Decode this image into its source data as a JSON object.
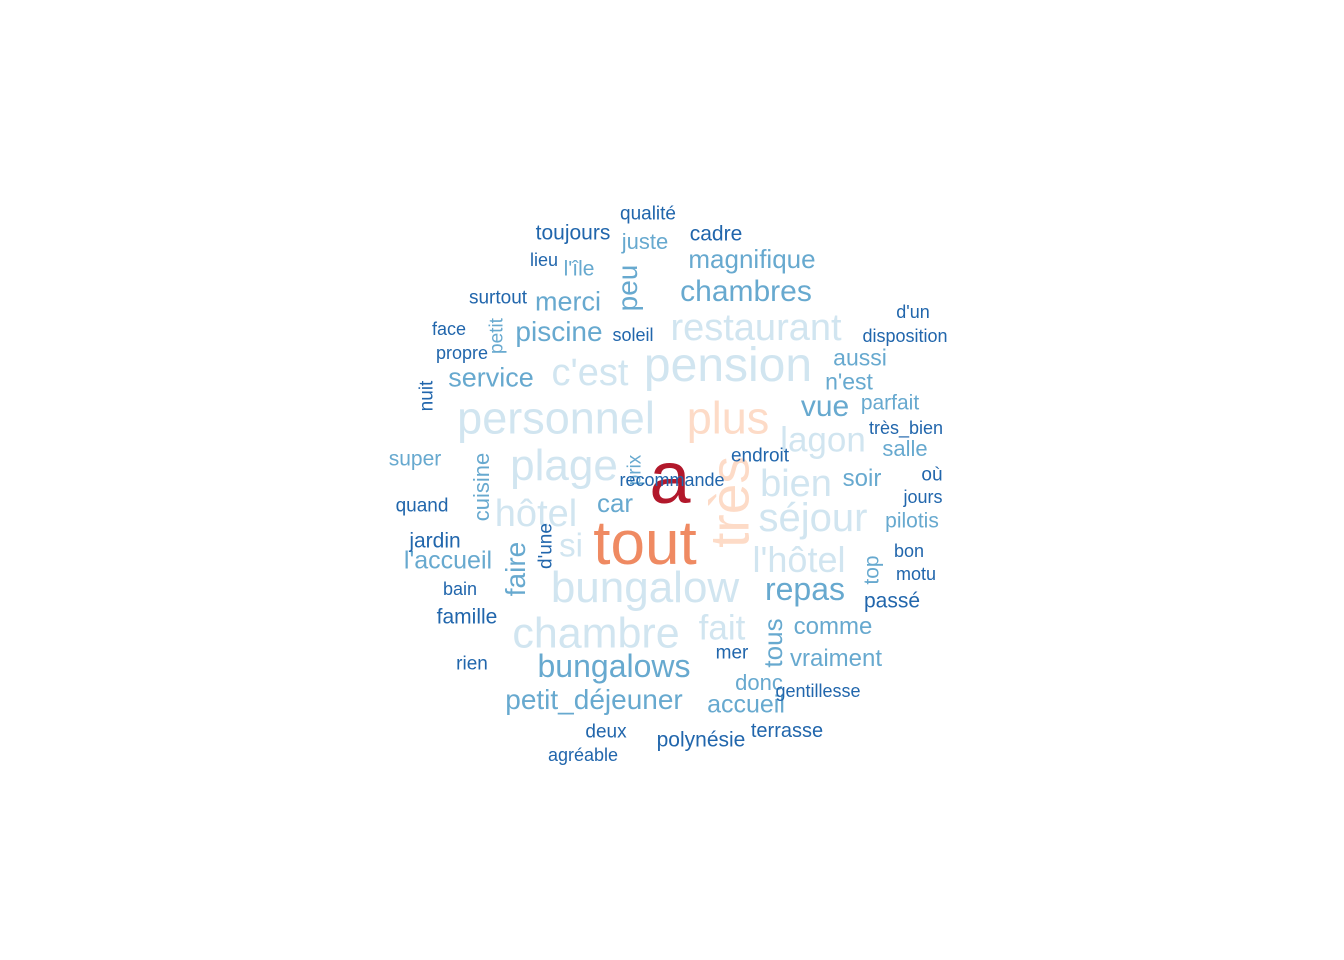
{
  "palette": {
    "darkred": "#b2182b",
    "orange": "#ef8a62",
    "peach": "#fddbc7",
    "pale": "#d1e5f0",
    "light": "#67a9cf",
    "dark": "#2166ac"
  },
  "words": [
    {
      "text": "a",
      "weight": 74,
      "color": "darkred"
    },
    {
      "text": "tout",
      "weight": 62,
      "color": "orange"
    },
    {
      "text": "très",
      "weight": 55,
      "color": "peach"
    },
    {
      "text": "plus",
      "weight": 45,
      "color": "peach"
    },
    {
      "text": "pension",
      "weight": 48,
      "color": "pale"
    },
    {
      "text": "personnel",
      "weight": 45,
      "color": "pale"
    },
    {
      "text": "plage",
      "weight": 44,
      "color": "pale"
    },
    {
      "text": "bungalow",
      "weight": 44,
      "color": "pale"
    },
    {
      "text": "chambre",
      "weight": 43,
      "color": "pale"
    },
    {
      "text": "restaurant",
      "weight": 38,
      "color": "pale"
    },
    {
      "text": "c'est",
      "weight": 38,
      "color": "pale"
    },
    {
      "text": "séjour",
      "weight": 40,
      "color": "pale"
    },
    {
      "text": "hôtel",
      "weight": 38,
      "color": "pale"
    },
    {
      "text": "bien",
      "weight": 38,
      "color": "pale"
    },
    {
      "text": "lagon",
      "weight": 35,
      "color": "pale"
    },
    {
      "text": "l'hôtel",
      "weight": 36,
      "color": "pale"
    },
    {
      "text": "fait",
      "weight": 35,
      "color": "pale"
    },
    {
      "text": "si",
      "weight": 33,
      "color": "pale"
    },
    {
      "text": "bungalows",
      "weight": 32,
      "color": "light"
    },
    {
      "text": "chambres",
      "weight": 30,
      "color": "light"
    },
    {
      "text": "repas",
      "weight": 32,
      "color": "light"
    },
    {
      "text": "petit_déjeuner",
      "weight": 28,
      "color": "light"
    },
    {
      "text": "vue",
      "weight": 30,
      "color": "light"
    },
    {
      "text": "peu",
      "weight": 28,
      "color": "light"
    },
    {
      "text": "magnifique",
      "weight": 26,
      "color": "light"
    },
    {
      "text": "merci",
      "weight": 27,
      "color": "light"
    },
    {
      "text": "piscine",
      "weight": 28,
      "color": "light"
    },
    {
      "text": "service",
      "weight": 27,
      "color": "light"
    },
    {
      "text": "car",
      "weight": 26,
      "color": "light"
    },
    {
      "text": "faire",
      "weight": 28,
      "color": "light"
    },
    {
      "text": "l'accueil",
      "weight": 25,
      "color": "light"
    },
    {
      "text": "accueil",
      "weight": 25,
      "color": "light"
    },
    {
      "text": "tous",
      "weight": 26,
      "color": "light"
    },
    {
      "text": "comme",
      "weight": 24,
      "color": "light"
    },
    {
      "text": "vraiment",
      "weight": 24,
      "color": "light"
    },
    {
      "text": "cuisine",
      "weight": 22,
      "color": "light"
    },
    {
      "text": "aussi",
      "weight": 23,
      "color": "light"
    },
    {
      "text": "n'est",
      "weight": 23,
      "color": "light"
    },
    {
      "text": "soir",
      "weight": 24,
      "color": "light"
    },
    {
      "text": "donc",
      "weight": 22,
      "color": "light"
    },
    {
      "text": "juste",
      "weight": 22,
      "color": "light"
    },
    {
      "text": "super",
      "weight": 21,
      "color": "light"
    },
    {
      "text": "parfait",
      "weight": 21,
      "color": "light"
    },
    {
      "text": "salle",
      "weight": 22,
      "color": "light"
    },
    {
      "text": "pilotis",
      "weight": 21,
      "color": "light"
    },
    {
      "text": "top",
      "weight": 21,
      "color": "light"
    },
    {
      "text": "l'île",
      "weight": 21,
      "color": "light"
    },
    {
      "text": "petit",
      "weight": 19,
      "color": "light"
    },
    {
      "text": "prix",
      "weight": 19,
      "color": "light"
    },
    {
      "text": "toujours",
      "weight": 21,
      "color": "dark"
    },
    {
      "text": "cadre",
      "weight": 21,
      "color": "dark"
    },
    {
      "text": "qualité",
      "weight": 19,
      "color": "dark"
    },
    {
      "text": "lieu",
      "weight": 18,
      "color": "dark"
    },
    {
      "text": "surtout",
      "weight": 19,
      "color": "dark"
    },
    {
      "text": "face",
      "weight": 18,
      "color": "dark"
    },
    {
      "text": "propre",
      "weight": 18,
      "color": "dark"
    },
    {
      "text": "soleil",
      "weight": 18,
      "color": "dark"
    },
    {
      "text": "nuit",
      "weight": 19,
      "color": "dark"
    },
    {
      "text": "d'un",
      "weight": 18,
      "color": "dark"
    },
    {
      "text": "disposition",
      "weight": 18,
      "color": "dark"
    },
    {
      "text": "très_bien",
      "weight": 18,
      "color": "dark"
    },
    {
      "text": "endroit",
      "weight": 19,
      "color": "dark"
    },
    {
      "text": "où",
      "weight": 19,
      "color": "dark"
    },
    {
      "text": "jours",
      "weight": 18,
      "color": "dark"
    },
    {
      "text": "quand",
      "weight": 19,
      "color": "dark"
    },
    {
      "text": "jardin",
      "weight": 21,
      "color": "dark"
    },
    {
      "text": "d'une",
      "weight": 19,
      "color": "dark"
    },
    {
      "text": "bon",
      "weight": 18,
      "color": "dark"
    },
    {
      "text": "motu",
      "weight": 18,
      "color": "dark"
    },
    {
      "text": "bain",
      "weight": 18,
      "color": "dark"
    },
    {
      "text": "passé",
      "weight": 21,
      "color": "dark"
    },
    {
      "text": "famille",
      "weight": 21,
      "color": "dark"
    },
    {
      "text": "mer",
      "weight": 19,
      "color": "dark"
    },
    {
      "text": "rien",
      "weight": 19,
      "color": "dark"
    },
    {
      "text": "gentillesse",
      "weight": 18,
      "color": "dark"
    },
    {
      "text": "deux",
      "weight": 19,
      "color": "dark"
    },
    {
      "text": "polynésie",
      "weight": 21,
      "color": "dark"
    },
    {
      "text": "terrasse",
      "weight": 20,
      "color": "dark"
    },
    {
      "text": "agréable",
      "weight": 18,
      "color": "dark"
    },
    {
      "text": "recommande",
      "weight": 18,
      "color": "dark"
    }
  ]
}
